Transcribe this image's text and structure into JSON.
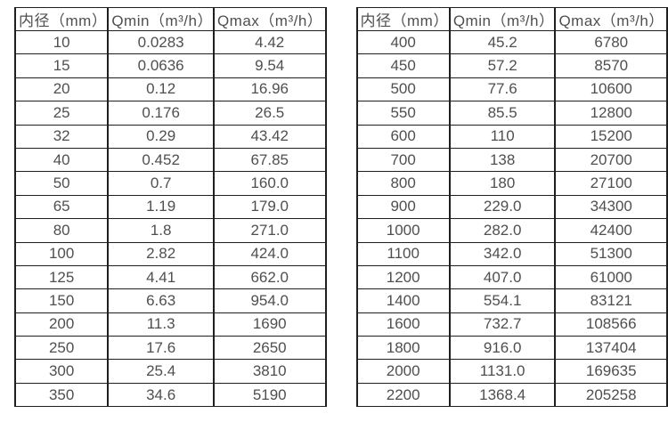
{
  "page": {
    "background": "#ffffff",
    "border_color": "#1f1f1f",
    "text_color": "#4f4f4f"
  },
  "chart_data": [
    {
      "type": "table",
      "title": "",
      "columns": [
        "内径（mm）",
        "Qmin（m³/h）",
        "Qmax（m³/h）"
      ],
      "rows": [
        [
          "10",
          "0.0283",
          "4.42"
        ],
        [
          "15",
          "0.0636",
          "9.54"
        ],
        [
          "20",
          "0.12",
          "16.96"
        ],
        [
          "25",
          "0.176",
          "26.5"
        ],
        [
          "32",
          "0.29",
          "43.42"
        ],
        [
          "40",
          "0.452",
          "67.85"
        ],
        [
          "50",
          "0.7",
          "160.0"
        ],
        [
          "65",
          "1.19",
          "179.0"
        ],
        [
          "80",
          "1.8",
          "271.0"
        ],
        [
          "100",
          "2.82",
          "424.0"
        ],
        [
          "125",
          "4.41",
          "662.0"
        ],
        [
          "150",
          "6.63",
          "954.0"
        ],
        [
          "200",
          "11.3",
          "1690"
        ],
        [
          "250",
          "17.6",
          "2650"
        ],
        [
          "300",
          "25.4",
          "3810"
        ],
        [
          "350",
          "34.6",
          "5190"
        ]
      ]
    },
    {
      "type": "table",
      "title": "",
      "columns": [
        "内径（mm）",
        "Qmin（m³/h）",
        "Qmax（m³/h）"
      ],
      "rows": [
        [
          "400",
          "45.2",
          "6780"
        ],
        [
          "450",
          "57.2",
          "8570"
        ],
        [
          "500",
          "77.6",
          "10600"
        ],
        [
          "550",
          "85.5",
          "12800"
        ],
        [
          "600",
          "110",
          "15200"
        ],
        [
          "700",
          "138",
          "20700"
        ],
        [
          "800",
          "180",
          "27100"
        ],
        [
          "900",
          "229.0",
          "34300"
        ],
        [
          "1000",
          "282.0",
          "42400"
        ],
        [
          "1100",
          "342.0",
          "51300"
        ],
        [
          "1200",
          "407.0",
          "61000"
        ],
        [
          "1400",
          "554.1",
          "83121"
        ],
        [
          "1600",
          "732.7",
          "108566"
        ],
        [
          "1800",
          "916.0",
          "137404"
        ],
        [
          "2000",
          "1131.0",
          "169635"
        ],
        [
          "2200",
          "1368.4",
          "205258"
        ]
      ]
    }
  ]
}
